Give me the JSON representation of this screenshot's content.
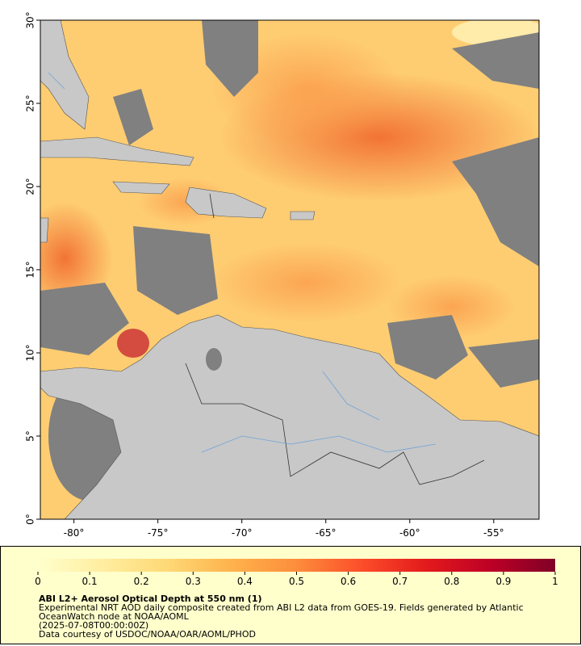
{
  "map": {
    "xlim": [
      -82,
      -52.3
    ],
    "ylim": [
      0,
      30
    ],
    "xticks": [
      {
        "value": -80,
        "label": "-80°"
      },
      {
        "value": -75,
        "label": "-75°"
      },
      {
        "value": -70,
        "label": "-70°"
      },
      {
        "value": -65,
        "label": "-65°"
      },
      {
        "value": -60,
        "label": "-60°"
      },
      {
        "value": -55,
        "label": "-55°"
      }
    ],
    "yticks": [
      {
        "value": 0,
        "label": "0°"
      },
      {
        "value": 5,
        "label": "5°"
      },
      {
        "value": 10,
        "label": "10°"
      },
      {
        "value": 15,
        "label": "15°"
      },
      {
        "value": 20,
        "label": "20°"
      },
      {
        "value": 25,
        "label": "25°"
      },
      {
        "value": 30,
        "label": "30°"
      }
    ]
  },
  "colorbar": {
    "range": [
      0,
      1
    ],
    "ticks": [
      0,
      0.1,
      0.2,
      0.3,
      0.4,
      0.5,
      0.6,
      0.7,
      0.8,
      0.9,
      1
    ],
    "colors": [
      "#ffffcc",
      "#ffeda0",
      "#fed976",
      "#feb24c",
      "#fd8d3c",
      "#fc4e2a",
      "#e31a1c",
      "#bd0026",
      "#800026"
    ]
  },
  "caption": {
    "title": "ABI L2+ Aerosol Optical Depth at 550 nm (1)",
    "description": "Experimental NRT AOD daily composite created from ABI L2 data from GOES-19. Fields generated by Atlantic OceanWatch node at NOAA/AOML",
    "timestamp": "(2025-07-08T00:00:00Z)",
    "credit": "Data courtesy of USDOC/NOAA/OAR/AOML/PHOD"
  }
}
